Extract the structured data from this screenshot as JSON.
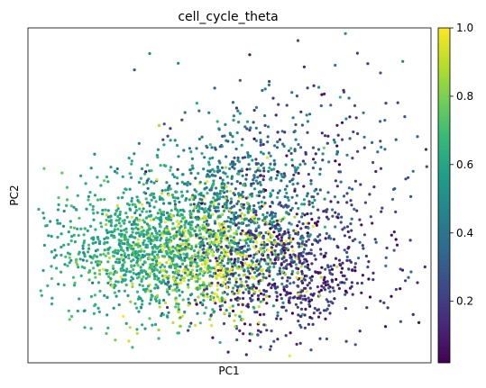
{
  "chart_data": {
    "type": "scatter",
    "title": "cell_cycle_theta",
    "xlabel": "PC1",
    "ylabel": "PC2",
    "x_ticks": false,
    "y_ticks": false,
    "colorbar": {
      "colormap": "viridis",
      "range": [
        0.02,
        1.0
      ],
      "tick_values": [
        0.2,
        0.4,
        0.6,
        0.8,
        1.0
      ],
      "tick_labels": [
        "0.2",
        "0.4",
        "0.6",
        "0.8",
        "1.0"
      ],
      "stops": [
        "#440154",
        "#482878",
        "#3e4989",
        "#31688e",
        "#26828e",
        "#1f9e89",
        "#35b779",
        "#6ece58",
        "#b5de2b",
        "#fde725"
      ]
    },
    "points_sample": [
      {
        "x": 0.62,
        "y": 0.15,
        "c": 0.5
      },
      {
        "x": 0.97,
        "y": 0.12,
        "c": 0.05
      },
      {
        "x": 0.04,
        "y": 0.58,
        "c": 0.75
      },
      {
        "x": 0.36,
        "y": 0.12,
        "c": 0.9
      },
      {
        "x": 0.91,
        "y": 0.52,
        "c": 0.3
      },
      {
        "x": 0.55,
        "y": 0.92,
        "c": 0.05
      },
      {
        "x": 0.93,
        "y": 0.9,
        "c": 0.45
      },
      {
        "x": 0.12,
        "y": 0.3,
        "c": 0.8
      },
      {
        "x": 0.5,
        "y": 0.25,
        "c": 0.25
      },
      {
        "x": 0.3,
        "y": 0.38,
        "c": 0.95
      }
    ]
  }
}
